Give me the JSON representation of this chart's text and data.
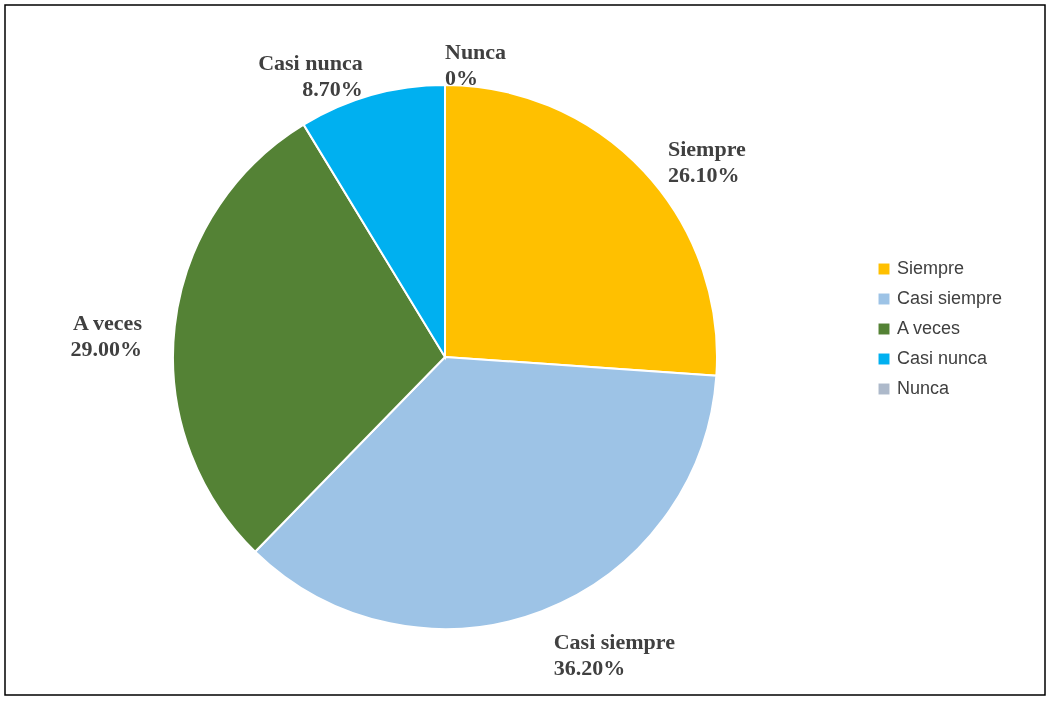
{
  "chart_data": {
    "type": "pie",
    "categories": [
      "Siempre",
      "Casi siempre",
      "A veces",
      "Casi nunca",
      "Nunca"
    ],
    "values": [
      26.1,
      36.2,
      29.0,
      8.7,
      0
    ],
    "colors": [
      "#ffc000",
      "#9dc3e6",
      "#548235",
      "#00b0f0",
      "#adb9ca"
    ],
    "value_labels": [
      "26.10%",
      "36.20%",
      "29.00%",
      "8.70%",
      "0%"
    ],
    "legend": "right"
  }
}
